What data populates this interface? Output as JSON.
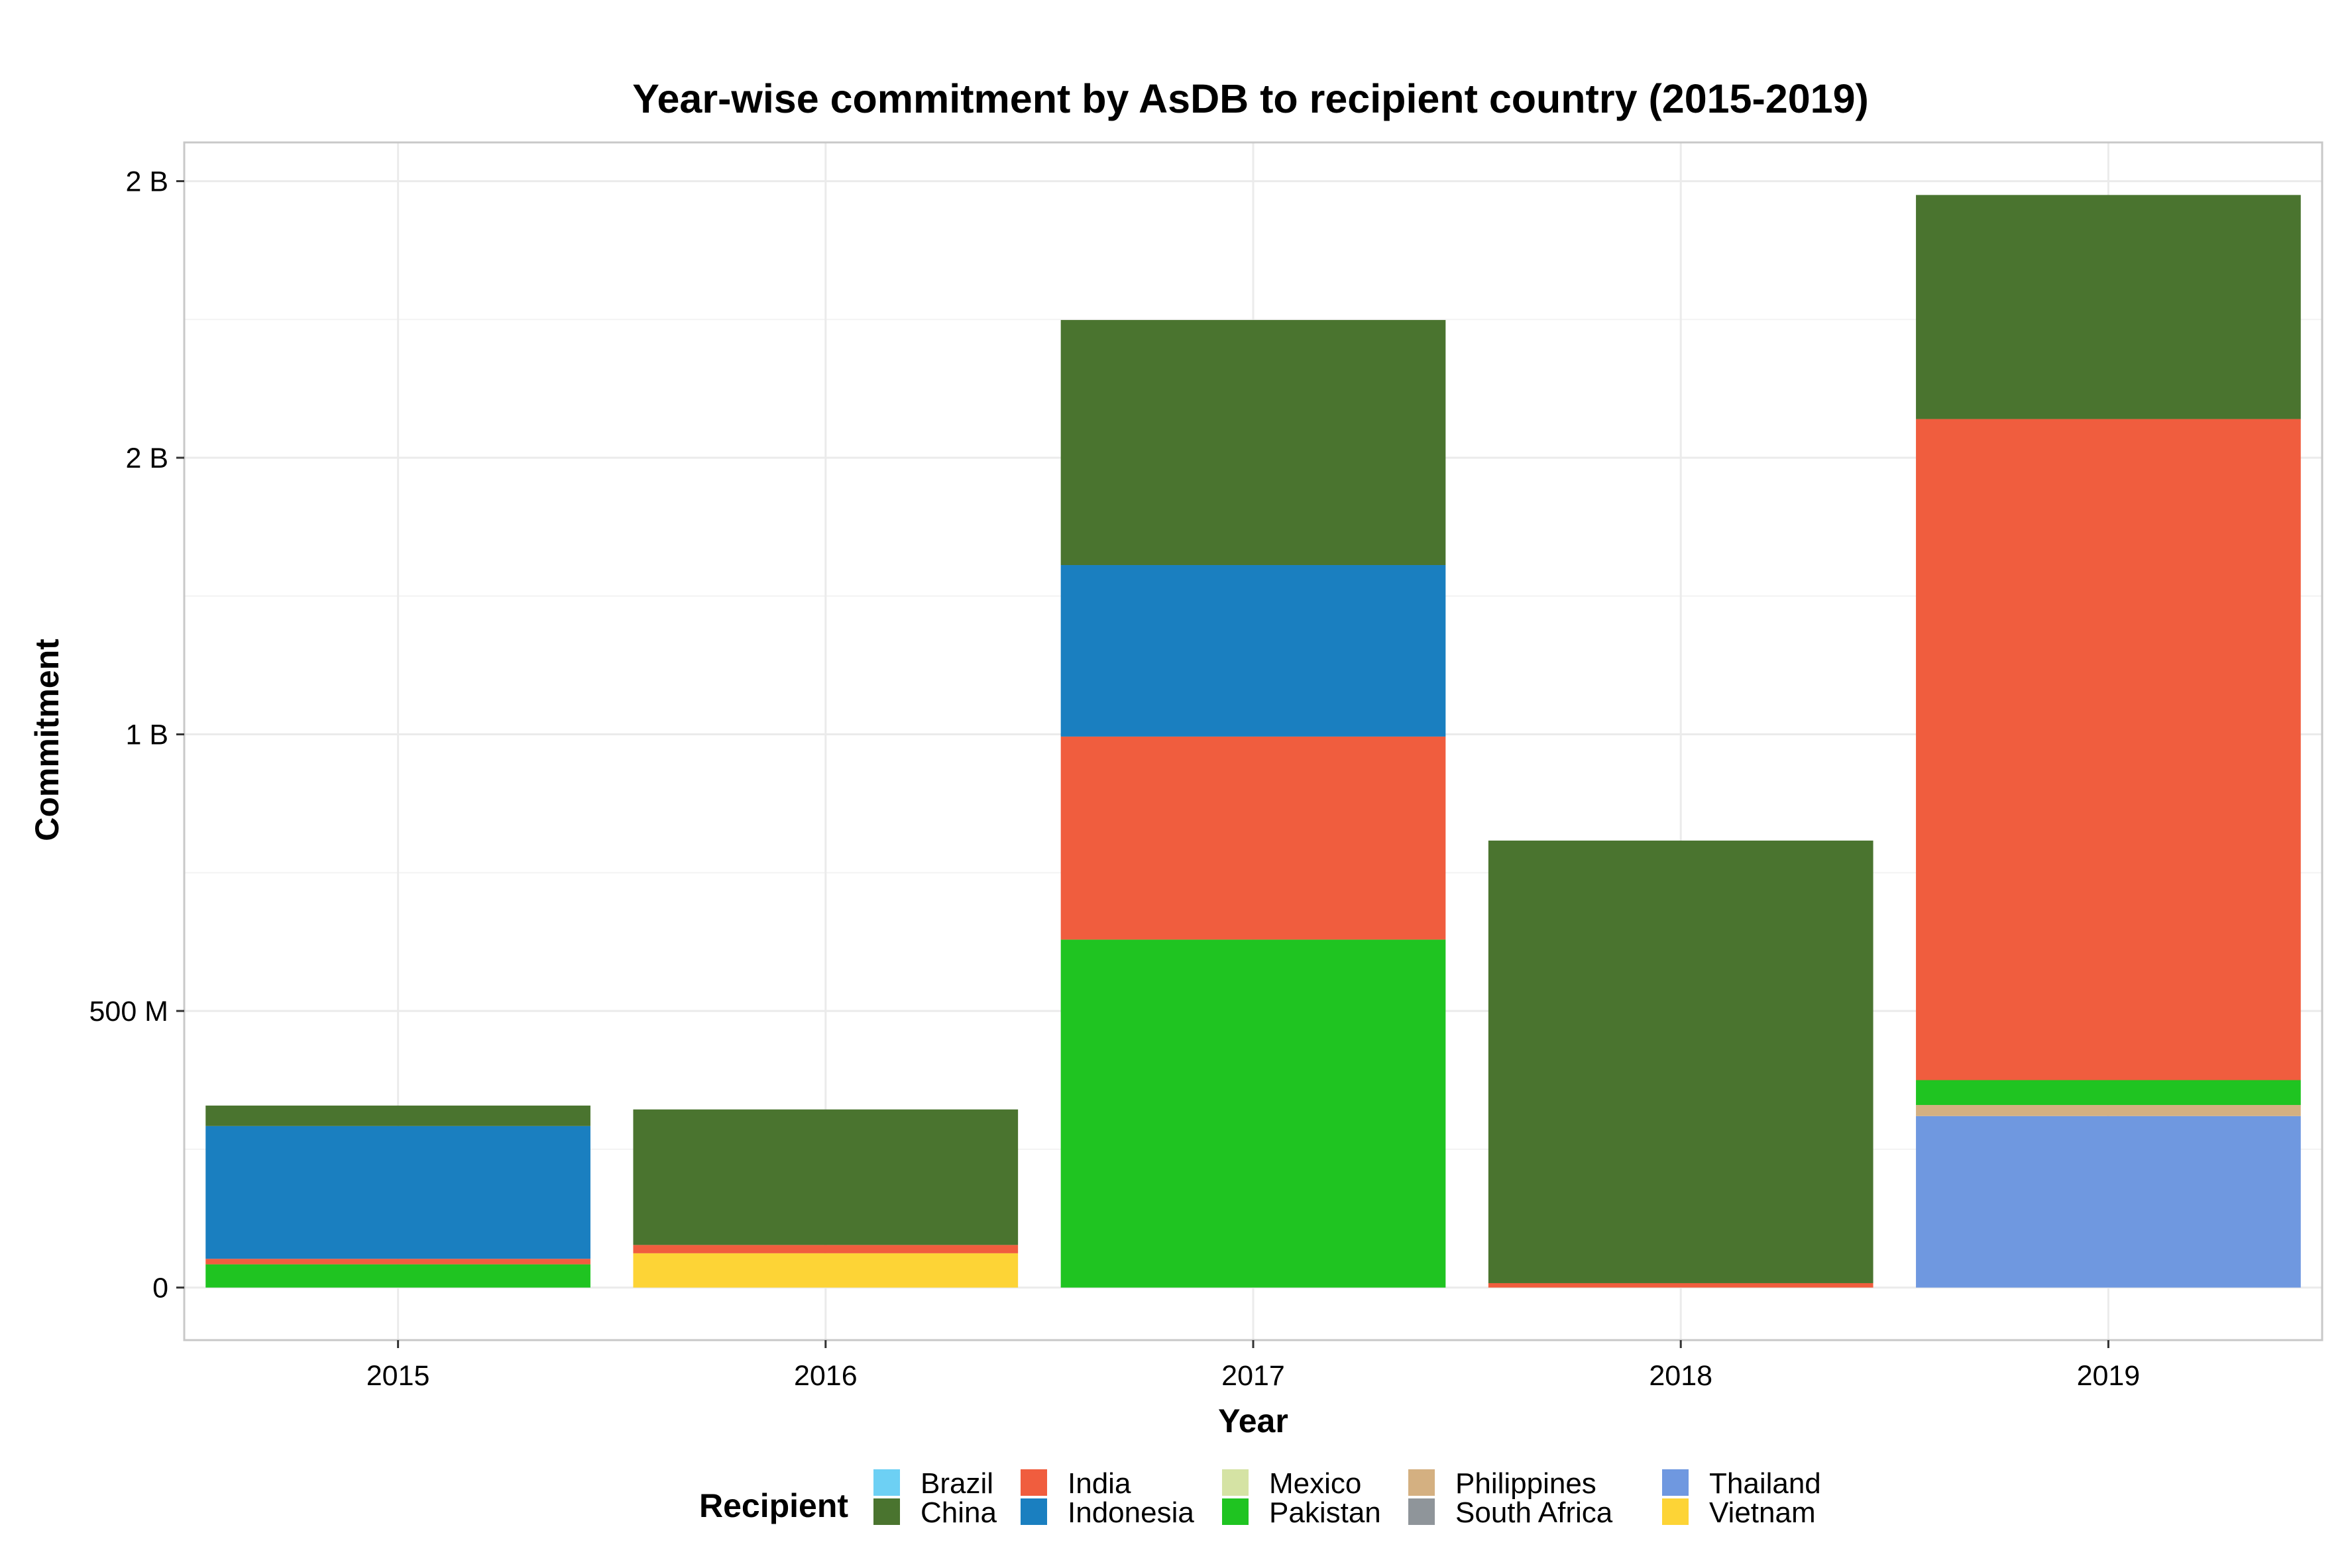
{
  "chart_data": {
    "type": "bar",
    "stacked": true,
    "title": "Year-wise commitment by AsDB to recipient country (2015-2019)",
    "xlabel": "Year",
    "ylabel": "Commitment",
    "categories": [
      "2015",
      "2016",
      "2017",
      "2018",
      "2019"
    ],
    "ylim": [
      -95000000,
      2070000000
    ],
    "y_ticks": [
      {
        "value": 0,
        "label": "0"
      },
      {
        "value": 500000000,
        "label": "500 M"
      },
      {
        "value": 1000000000,
        "label": "1 B"
      },
      {
        "value": 1500000000,
        "label": "2 B"
      },
      {
        "value": 2000000000,
        "label": "2 B"
      }
    ],
    "grid": true,
    "legend_title": "Recipient",
    "legend_position": "bottom",
    "series": [
      {
        "name": "Thailand",
        "color": "#6f98e0",
        "values": [
          0,
          0,
          0,
          0,
          310000000
        ]
      },
      {
        "name": "Philippines",
        "color": "#d4b081",
        "values": [
          0,
          0,
          0,
          0,
          20000000
        ]
      },
      {
        "name": "Pakistan",
        "color": "#1fc421",
        "values": [
          42000000,
          0,
          629000000,
          0,
          45000000
        ]
      },
      {
        "name": "India",
        "color": "#f05d3e",
        "values": [
          10000000,
          15000000,
          367000000,
          8000000,
          1195000000
        ]
      },
      {
        "name": "Indonesia",
        "color": "#1a7fc0",
        "values": [
          240000000,
          0,
          310000000,
          0,
          0
        ]
      },
      {
        "name": "China",
        "color": "#4a742f",
        "values": [
          37000000,
          245000000,
          443000000,
          800000000,
          405000000
        ]
      },
      {
        "name": "Vietnam",
        "color": "#fdd436",
        "values": [
          0,
          62000000,
          0,
          0,
          0
        ]
      },
      {
        "name": "Brazil",
        "color": "#6dd0f4",
        "values": [
          0,
          0,
          0,
          0,
          0
        ]
      },
      {
        "name": "Mexico",
        "color": "#d5e3a4",
        "values": [
          0,
          0,
          0,
          0,
          0
        ]
      },
      {
        "name": "South Africa",
        "color": "#8f959a",
        "values": [
          0,
          0,
          0,
          0,
          0
        ]
      }
    ],
    "stack_order": [
      "Thailand",
      "Philippines",
      "Vietnam",
      "Pakistan",
      "India",
      "Indonesia",
      "China"
    ],
    "legend_columns": [
      [
        "Brazil",
        "China"
      ],
      [
        "India",
        "Indonesia"
      ],
      [
        "Mexico",
        "Pakistan"
      ],
      [
        "Philippines",
        "South Africa"
      ],
      [
        "Thailand",
        "Vietnam"
      ]
    ]
  }
}
